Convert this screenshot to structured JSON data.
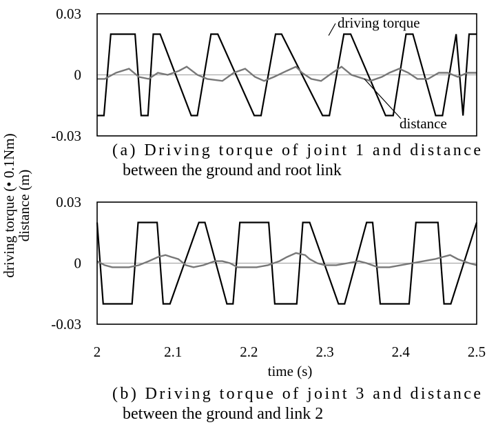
{
  "ylabel_line1": "driving torque  (• 0.1Nm)",
  "ylabel_line2": "distance  (m)",
  "xlabel": "time  (s)",
  "chart_data": [
    {
      "type": "line",
      "ylim": [
        -0.03,
        0.03
      ],
      "yticks": [
        "0.03",
        "0",
        "-0.03"
      ],
      "xlim": [
        2.0,
        2.5
      ],
      "caption": [
        "(a) Driving torque of joint 1 and distance",
        "between the ground and root link"
      ],
      "annotations": [
        "driving  torque",
        "distance"
      ],
      "series": [
        {
          "name": "driving torque",
          "color": "#000000",
          "x": [
            2.0,
            2.009,
            2.018,
            2.05,
            2.058,
            2.067,
            2.074,
            2.083,
            2.124,
            2.132,
            2.15,
            2.159,
            2.207,
            2.216,
            2.235,
            2.243,
            2.297,
            2.306,
            2.325,
            2.334,
            2.38,
            2.39,
            2.407,
            2.416,
            2.446,
            2.455,
            2.473,
            2.482,
            2.49,
            2.5
          ],
          "y": [
            -0.02,
            -0.02,
            0.02,
            0.02,
            -0.02,
            -0.02,
            0.02,
            0.02,
            -0.02,
            -0.02,
            0.02,
            0.02,
            -0.02,
            -0.02,
            0.02,
            0.02,
            -0.02,
            -0.02,
            0.02,
            0.02,
            -0.02,
            -0.02,
            0.02,
            0.02,
            -0.02,
            -0.02,
            0.02,
            -0.02,
            0.02,
            0.02
          ]
        },
        {
          "name": "distance",
          "color": "#777777",
          "x": [
            2.0,
            2.01,
            2.025,
            2.042,
            2.055,
            2.068,
            2.08,
            2.093,
            2.108,
            2.118,
            2.132,
            2.145,
            2.165,
            2.18,
            2.195,
            2.208,
            2.22,
            2.233,
            2.25,
            2.262,
            2.27,
            2.282,
            2.295,
            2.31,
            2.322,
            2.335,
            2.36,
            2.375,
            2.385,
            2.398,
            2.41,
            2.422,
            2.436,
            2.45,
            2.462,
            2.475,
            2.488,
            2.5
          ],
          "y": [
            -0.002,
            -0.002,
            0.001,
            0.003,
            -0.001,
            -0.002,
            0.001,
            0.0,
            0.002,
            0.004,
            0.0,
            -0.002,
            -0.003,
            0.001,
            0.003,
            -0.001,
            -0.003,
            -0.001,
            0.002,
            0.004,
            0.001,
            -0.002,
            -0.003,
            0.001,
            0.004,
            0.0,
            -0.003,
            -0.001,
            0.001,
            0.003,
            0.001,
            -0.002,
            -0.002,
            0.001,
            0.001,
            -0.001,
            0.001,
            0.001
          ]
        }
      ]
    },
    {
      "type": "line",
      "ylim": [
        -0.03,
        0.03
      ],
      "yticks": [
        "0.03",
        "0",
        "-0.03"
      ],
      "xlim": [
        2.0,
        2.5
      ],
      "xticks": [
        "2",
        "2.1",
        "2.2",
        "2.3",
        "2.4",
        "2.5"
      ],
      "caption": [
        "(b) Driving torque of joint 3 and distance",
        "between the ground and link 2"
      ],
      "series": [
        {
          "name": "driving torque",
          "color": "#000000",
          "x": [
            2.0,
            2.008,
            2.046,
            2.054,
            2.079,
            2.087,
            2.096,
            2.134,
            2.142,
            2.171,
            2.179,
            2.188,
            2.226,
            2.234,
            2.263,
            2.271,
            2.28,
            2.318,
            2.326,
            2.355,
            2.363,
            2.373,
            2.411,
            2.42,
            2.449,
            2.457,
            2.466,
            2.5
          ],
          "y": [
            0.02,
            -0.02,
            -0.02,
            0.02,
            0.02,
            -0.02,
            -0.02,
            0.02,
            0.02,
            -0.02,
            -0.02,
            0.02,
            0.02,
            -0.02,
            -0.02,
            0.02,
            0.02,
            -0.02,
            -0.02,
            0.02,
            0.02,
            -0.02,
            -0.02,
            0.02,
            0.02,
            -0.02,
            -0.02,
            0.02
          ]
        },
        {
          "name": "distance",
          "color": "#777777",
          "x": [
            2.0,
            2.01,
            2.02,
            2.03,
            2.042,
            2.055,
            2.068,
            2.08,
            2.09,
            2.098,
            2.107,
            2.117,
            2.127,
            2.14,
            2.155,
            2.165,
            2.175,
            2.185,
            2.195,
            2.21,
            2.225,
            2.24,
            2.25,
            2.262,
            2.274,
            2.28,
            2.29,
            2.3,
            2.315,
            2.33,
            2.345,
            2.355,
            2.37,
            2.385,
            2.4,
            2.415,
            2.43,
            2.445,
            2.455,
            2.465,
            2.475,
            2.49,
            2.5
          ],
          "y": [
            0.001,
            -0.001,
            -0.002,
            -0.002,
            -0.002,
            -0.001,
            0.001,
            0.003,
            0.004,
            0.003,
            0.002,
            -0.001,
            -0.002,
            -0.001,
            0.001,
            0.001,
            0.0,
            -0.002,
            -0.002,
            -0.002,
            -0.001,
            0.001,
            0.003,
            0.005,
            0.004,
            0.002,
            0.0,
            -0.001,
            -0.001,
            0.0,
            0.001,
            0.0,
            -0.002,
            -0.002,
            -0.001,
            0.0,
            0.001,
            0.002,
            0.003,
            0.004,
            0.002,
            0.0,
            -0.001
          ]
        }
      ]
    }
  ]
}
